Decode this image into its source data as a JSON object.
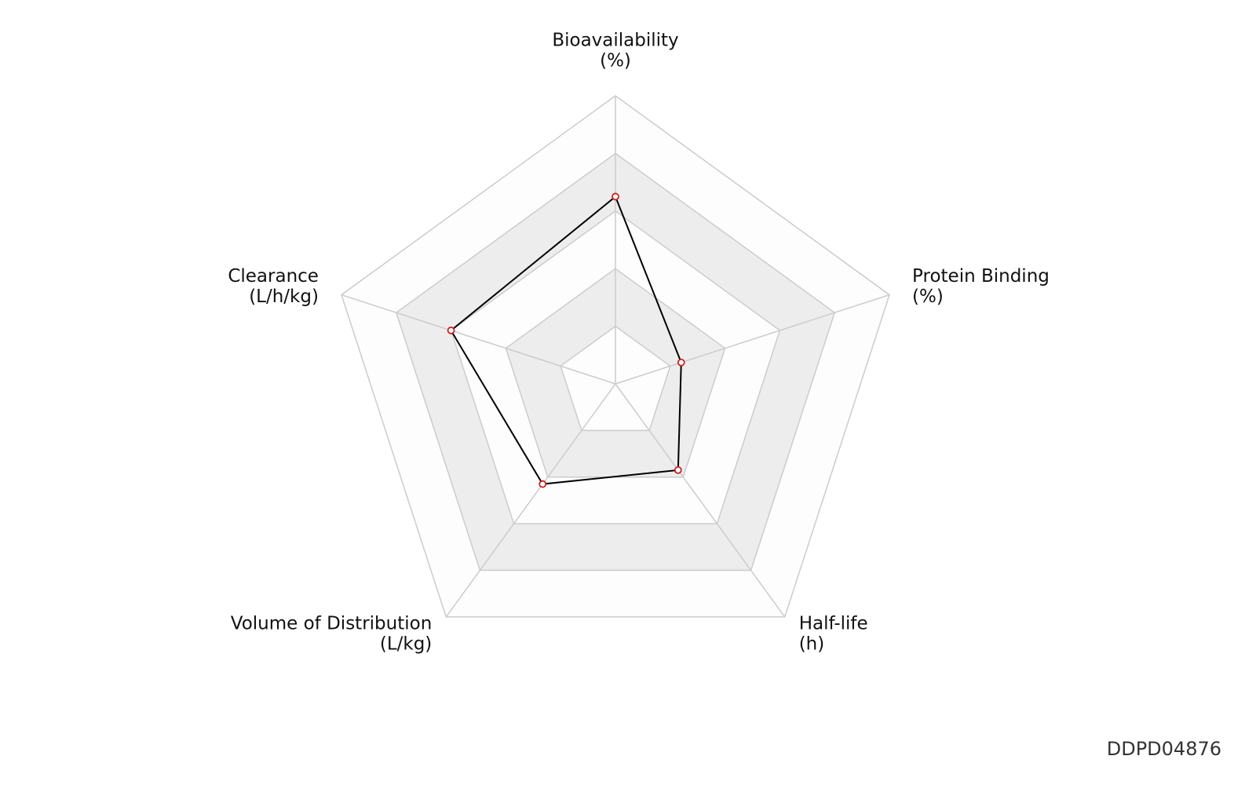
{
  "chart_data": {
    "type": "radar",
    "categories": [
      [
        "Bioavailability",
        "(%)"
      ],
      [
        "Protein Binding",
        "(%)"
      ],
      [
        "Half-life",
        "(h)"
      ],
      [
        "Volume of Distribution",
        "(L/kg)"
      ],
      [
        "Clearance",
        "(L/h/kg)"
      ]
    ],
    "values": [
      0.65,
      0.24,
      0.37,
      0.43,
      0.6
    ],
    "rlim": [
      0,
      1
    ],
    "rticks": [
      0.2,
      0.4,
      0.6,
      0.8,
      1.0
    ],
    "color": "#000000",
    "marker_color": "#cc2222",
    "band_colors": [
      "#fdfdfd",
      "#ededed"
    ],
    "grid_color": "#cccccc",
    "watermark": "DDPD04876"
  }
}
